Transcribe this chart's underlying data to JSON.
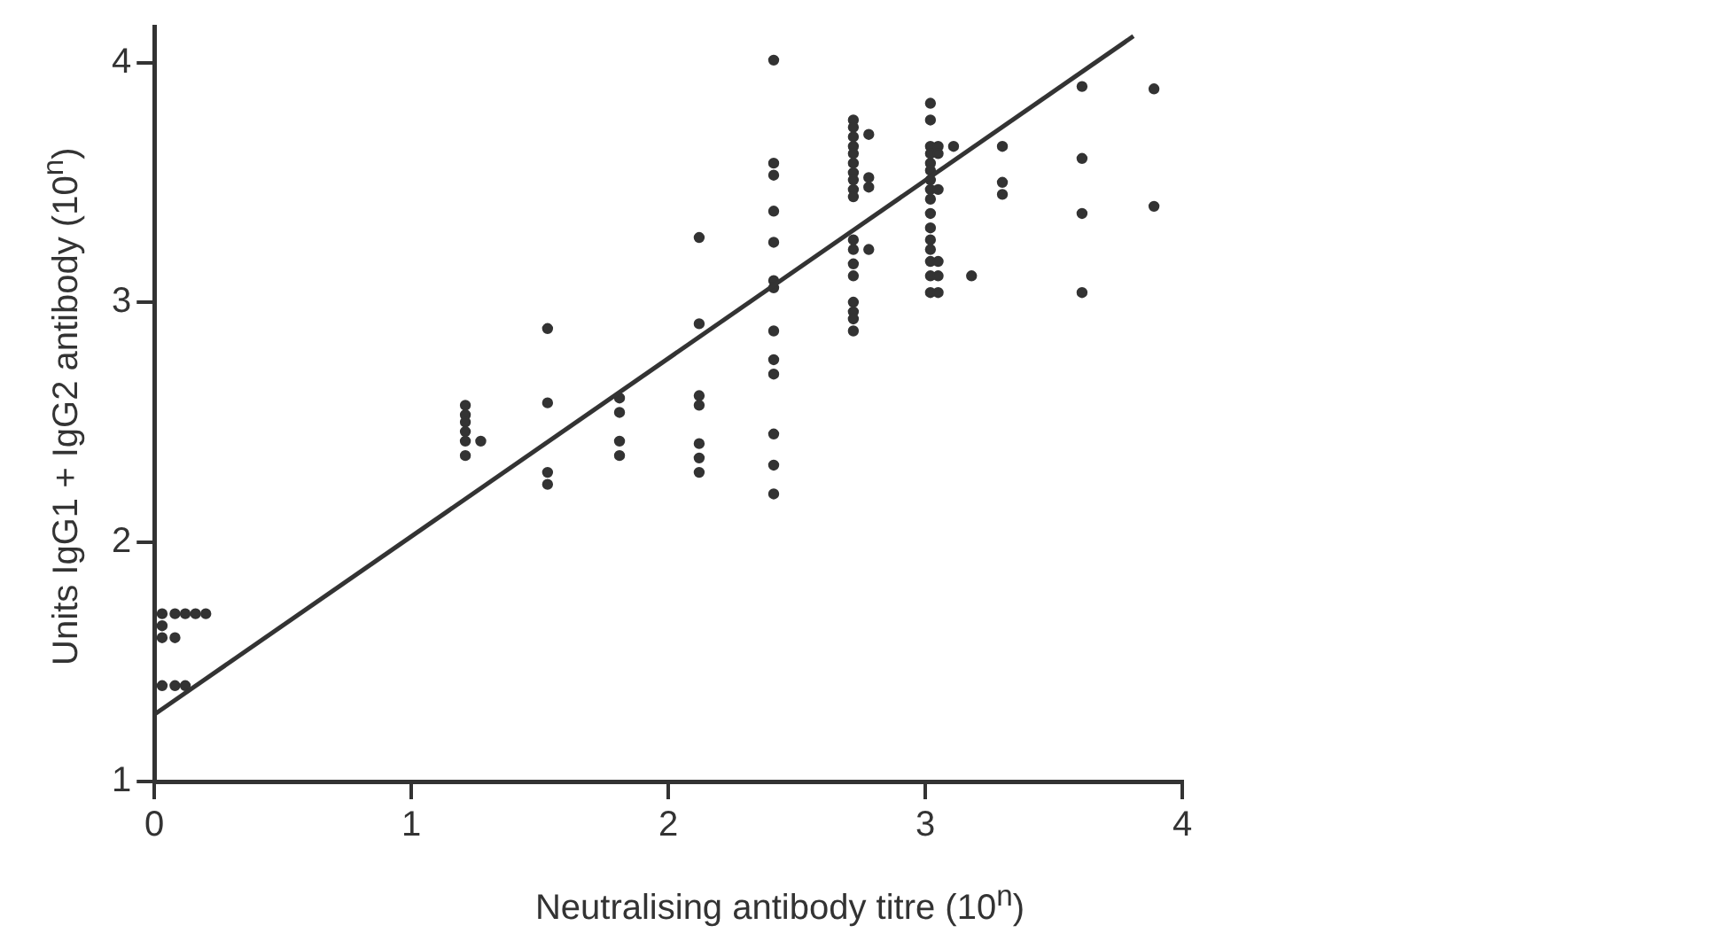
{
  "chart_data": {
    "type": "scatter",
    "xlabel": "Neutralising antibody titre (10$^{n}$)",
    "ylabel": "Units IgG1 + IgG2 antibody (10$^{n}$)",
    "xlim": [
      0,
      4
    ],
    "ylim": [
      1,
      4.15
    ],
    "xticks": [
      0,
      1,
      2,
      3,
      4
    ],
    "yticks": [
      1,
      2,
      3,
      4
    ],
    "grid": false,
    "legend": false,
    "series": [
      {
        "color": "#333333",
        "marker": "circle",
        "x": [
          0.03,
          0.08,
          0.12,
          0.16,
          0.2,
          0.03,
          0.03,
          0.08,
          0.03,
          0.08,
          0.12,
          1.21,
          1.21,
          1.21,
          1.21,
          1.21,
          1.27,
          1.21,
          1.53,
          1.53,
          1.53,
          1.53,
          1.81,
          1.81,
          1.81,
          1.81,
          2.12,
          2.12,
          2.12,
          2.12,
          2.12,
          2.12,
          2.12,
          2.41,
          2.41,
          2.41,
          2.41,
          2.41,
          2.41,
          2.41,
          2.41,
          2.41,
          2.41,
          2.41,
          2.41,
          2.41,
          2.72,
          2.72,
          2.72,
          2.72,
          2.72,
          2.72,
          2.72,
          2.72,
          2.72,
          2.72,
          2.78,
          2.78,
          2.78,
          2.72,
          2.72,
          2.72,
          2.72,
          2.78,
          2.72,
          2.72,
          2.72,
          2.72,
          3.02,
          3.02,
          3.02,
          3.02,
          3.02,
          3.02,
          3.02,
          3.02,
          3.02,
          3.02,
          3.02,
          3.02,
          3.02,
          3.02,
          3.02,
          3.02,
          3.05,
          3.05,
          3.05,
          3.05,
          3.05,
          3.05,
          3.11,
          3.18,
          3.3,
          3.3,
          3.3,
          3.61,
          3.61,
          3.61,
          3.61,
          3.89,
          3.89
        ],
        "values": [
          1.7,
          1.7,
          1.7,
          1.7,
          1.7,
          1.65,
          1.6,
          1.6,
          1.4,
          1.4,
          1.4,
          2.57,
          2.53,
          2.5,
          2.46,
          2.42,
          2.42,
          2.36,
          2.89,
          2.58,
          2.29,
          2.24,
          2.6,
          2.54,
          2.42,
          2.36,
          3.27,
          2.91,
          2.61,
          2.57,
          2.41,
          2.35,
          2.29,
          4.01,
          3.58,
          3.53,
          3.38,
          3.25,
          3.09,
          3.06,
          2.88,
          2.76,
          2.7,
          2.45,
          2.32,
          2.2,
          3.76,
          3.73,
          3.69,
          3.65,
          3.62,
          3.58,
          3.54,
          3.51,
          3.47,
          3.44,
          3.7,
          3.52,
          3.48,
          3.26,
          3.22,
          3.16,
          3.11,
          3.22,
          3.0,
          2.96,
          2.93,
          2.88,
          3.83,
          3.76,
          3.65,
          3.62,
          3.58,
          3.55,
          3.51,
          3.47,
          3.43,
          3.37,
          3.31,
          3.26,
          3.22,
          3.17,
          3.11,
          3.04,
          3.65,
          3.62,
          3.47,
          3.17,
          3.11,
          3.04,
          3.65,
          3.11,
          3.65,
          3.5,
          3.45,
          3.9,
          3.6,
          3.37,
          3.04,
          3.89,
          3.4
        ]
      },
      {
        "type": "line",
        "color": "#333333",
        "x": [
          0,
          3.81
        ],
        "values": [
          1.28,
          4.11
        ]
      }
    ]
  }
}
